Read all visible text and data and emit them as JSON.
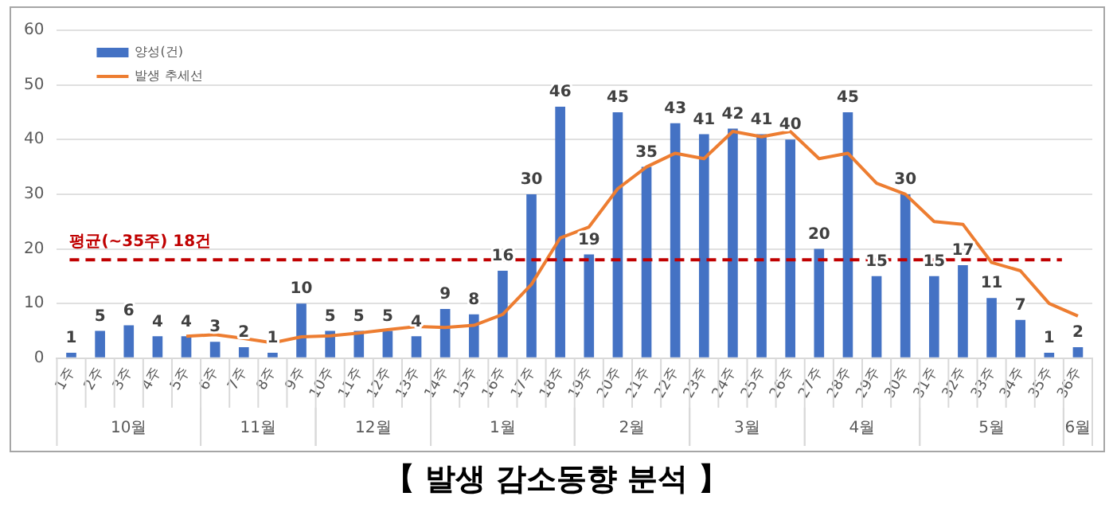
{
  "chart_data": {
    "type": "bar",
    "title": "【 발생 감소동향 분석 】",
    "categories": [
      "1주",
      "2주",
      "3주",
      "4주",
      "5주",
      "6주",
      "7주",
      "8주",
      "9주",
      "10주",
      "11주",
      "12주",
      "13주",
      "14주",
      "15주",
      "16주",
      "17주",
      "18주",
      "19주",
      "20주",
      "21주",
      "22주",
      "23주",
      "24주",
      "25주",
      "26주",
      "27주",
      "28주",
      "29주",
      "30주",
      "31주",
      "32주",
      "33주",
      "34주",
      "35주",
      "36주"
    ],
    "series": [
      {
        "name": "양성(건)",
        "color": "#4472c4",
        "values": [
          1,
          5,
          6,
          4,
          4,
          3,
          2,
          1,
          10,
          5,
          5,
          5,
          4,
          9,
          8,
          16,
          30,
          46,
          19,
          45,
          35,
          43,
          41,
          42,
          41,
          40,
          20,
          45,
          15,
          30,
          15,
          17,
          11,
          7,
          1,
          2
        ],
        "value_labels": [
          "1",
          "5",
          "6",
          "4",
          "4",
          "3",
          "2",
          "1",
          "10",
          "5",
          "5",
          "5",
          "4",
          "9",
          "8",
          "16",
          "30",
          "46",
          "19",
          "45",
          "35",
          "43",
          "41",
          "42",
          "41",
          "40",
          "20",
          "45",
          "15",
          "30",
          "15",
          "17",
          "11",
          "7",
          "1",
          "2"
        ]
      },
      {
        "name": "발생 추세선",
        "type": "line",
        "color": "#ed7d31",
        "values": [
          null,
          null,
          null,
          null,
          4,
          4.3,
          3.6,
          2.8,
          3.9,
          4.1,
          4.6,
          5.2,
          5.8,
          5.6,
          6,
          8,
          13.5,
          22,
          24,
          31,
          35,
          37.5,
          36.5,
          41.5,
          40.5,
          41.5,
          36.5,
          37.5,
          32,
          30,
          25,
          24.5,
          17.5,
          16,
          10,
          7.7
        ]
      }
    ],
    "ylim": [
      0,
      60
    ],
    "yticks": [
      0,
      10,
      20,
      30,
      40,
      50,
      60
    ],
    "grid": "y",
    "legend": "top left",
    "marker": "none",
    "ref_lines": [
      {
        "axis": "y",
        "value": 18,
        "label": "평균(~35주) 18건",
        "color": "#c00000",
        "line_style": "dashed"
      }
    ],
    "annotations": [
      "10월",
      "11월",
      "12월",
      "1월",
      "2월",
      "3월",
      "4월",
      "5월",
      "6월"
    ]
  }
}
